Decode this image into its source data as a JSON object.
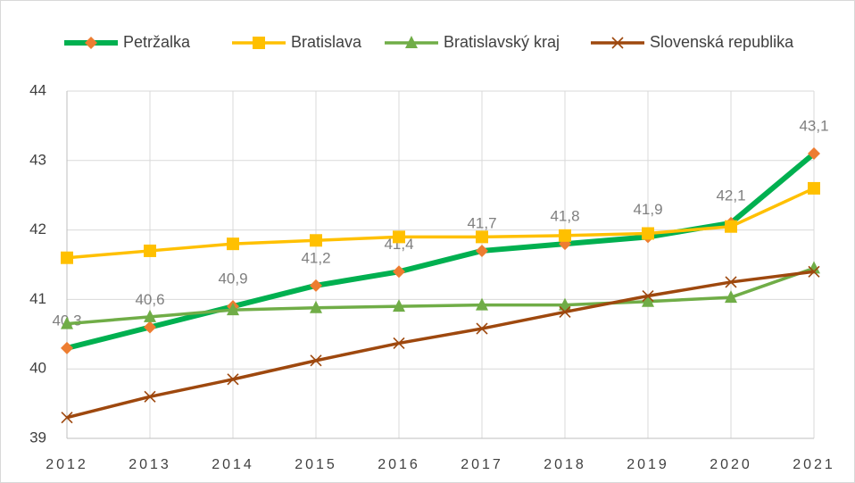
{
  "chart_data": {
    "type": "line",
    "categories": [
      "2012",
      "2013",
      "2014",
      "2015",
      "2016",
      "2017",
      "2018",
      "2019",
      "2020",
      "2021"
    ],
    "series": [
      {
        "name": "Petržalka",
        "color": "#00b050",
        "marker": "diamond",
        "marker_color": "#ed7d31",
        "values": [
          40.3,
          40.6,
          40.9,
          41.2,
          41.4,
          41.7,
          41.8,
          41.9,
          42.1,
          43.1
        ],
        "value_labels": [
          "40,3",
          "40,6",
          "40,9",
          "41,2",
          "41,4",
          "41,7",
          "41,8",
          "41,9",
          "42,1",
          "43,1"
        ]
      },
      {
        "name": "Bratislava",
        "color": "#ffc000",
        "marker": "square",
        "marker_color": "#ffc000",
        "values": [
          41.6,
          41.7,
          41.8,
          41.85,
          41.9,
          41.9,
          41.92,
          41.95,
          42.05,
          42.6
        ]
      },
      {
        "name": "Bratislavský kraj",
        "color": "#70ad47",
        "marker": "triangle",
        "marker_color": "#70ad47",
        "values": [
          40.65,
          40.75,
          40.85,
          40.88,
          40.9,
          40.92,
          40.92,
          40.97,
          41.03,
          41.45
        ]
      },
      {
        "name": "Slovenská republika",
        "color": "#9e480e",
        "marker": "x",
        "marker_color": "#9e480e",
        "values": [
          39.3,
          39.6,
          39.85,
          40.12,
          40.37,
          40.58,
          40.82,
          41.05,
          41.25,
          41.4
        ]
      }
    ],
    "ylim": [
      39,
      44
    ],
    "yticks": [
      39,
      40,
      41,
      42,
      43,
      44
    ],
    "grid": true,
    "legend": "top"
  }
}
